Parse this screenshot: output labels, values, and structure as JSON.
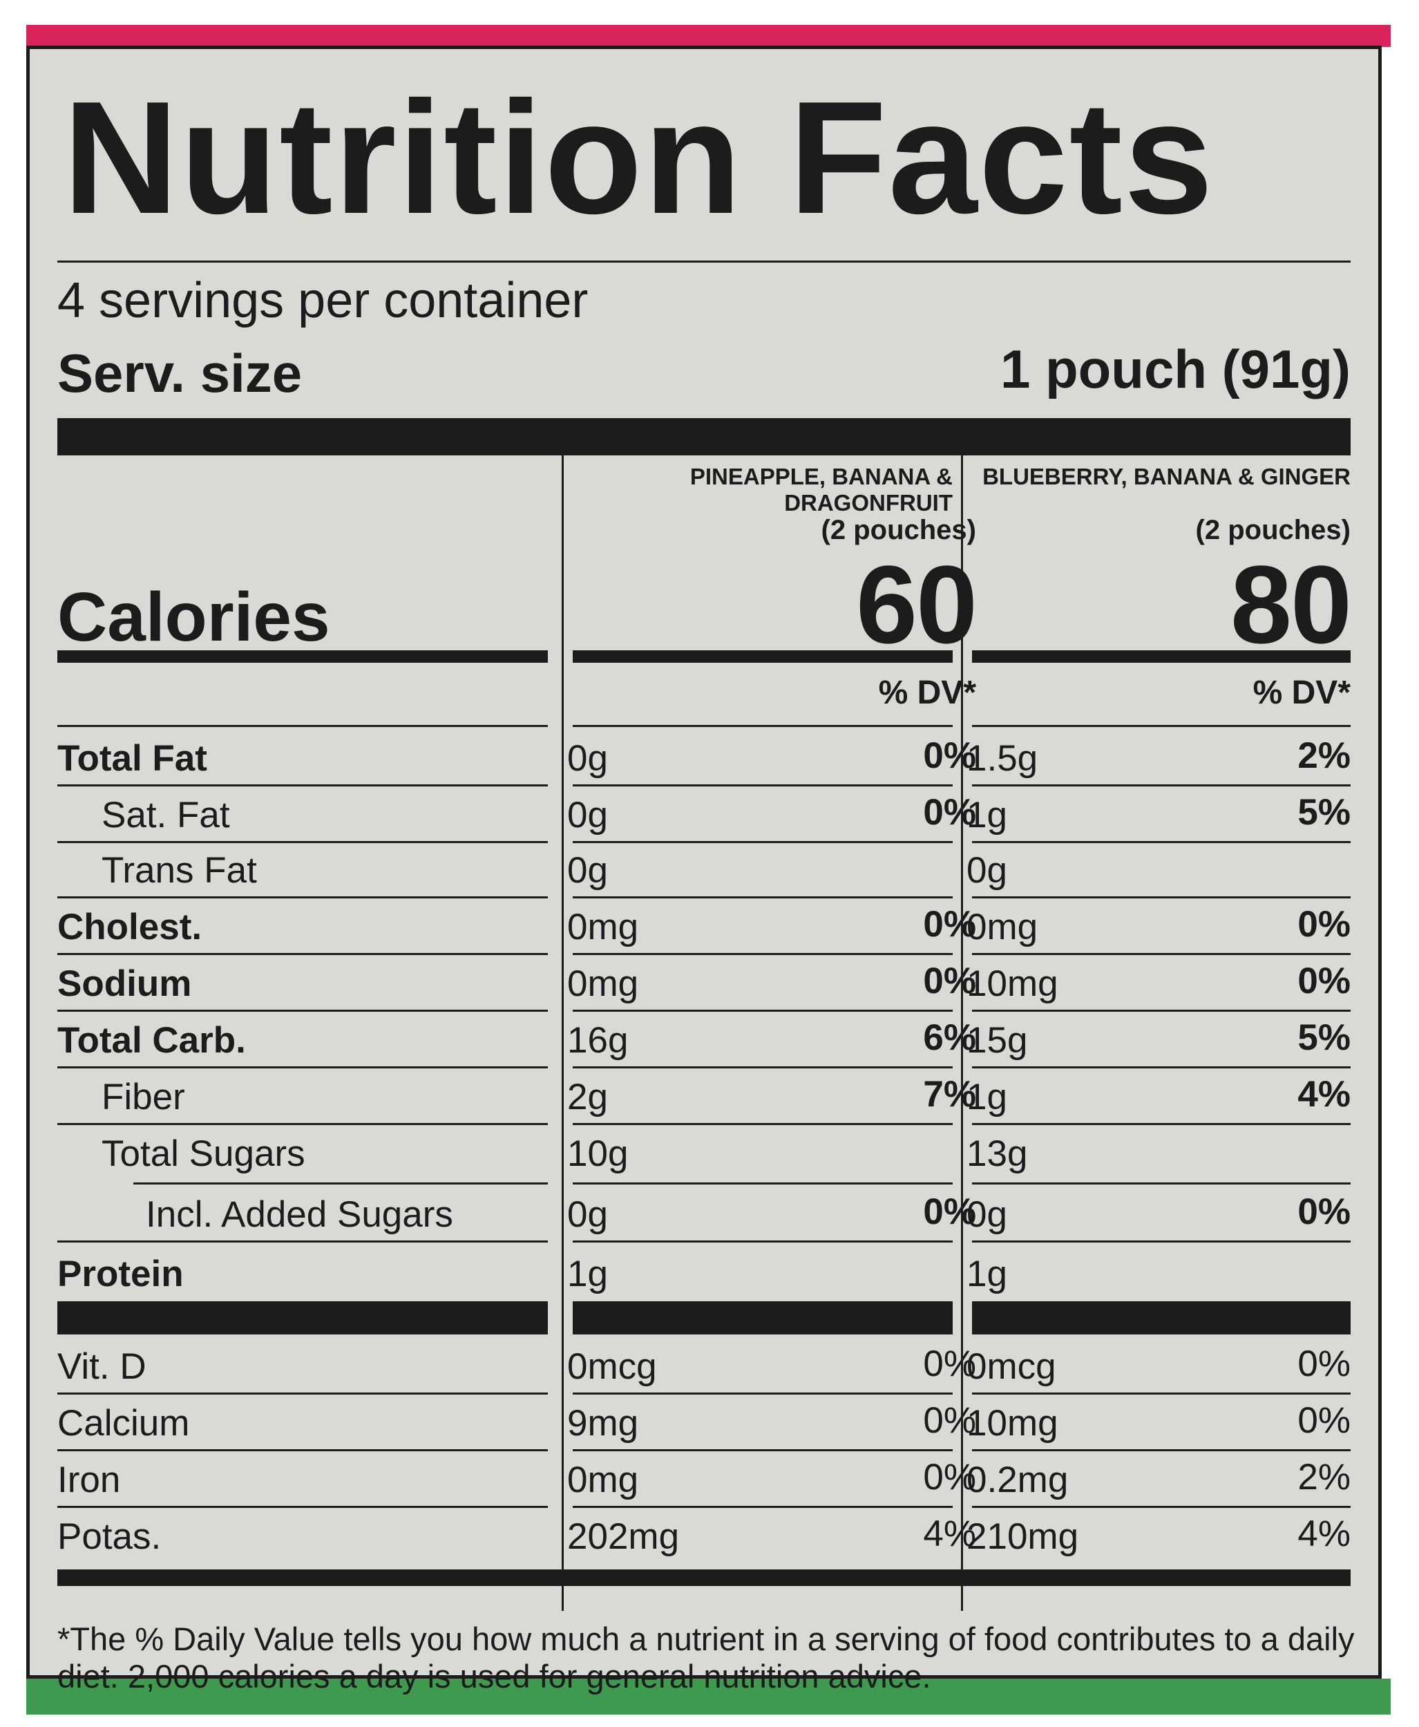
{
  "label": {
    "title": "Nutrition Facts",
    "servings_per_container": "4 servings per container",
    "serving_size_label": "Serv. size",
    "serving_size_value": "1 pouch (91g)",
    "calories_label": "Calories",
    "dv_header": "% DV*",
    "columns": [
      {
        "name": "PINEAPPLE, BANANA & DRAGONFRUIT",
        "pouches": "(2 pouches)",
        "calories": "60"
      },
      {
        "name": "BLUEBERRY, BANANA & GINGER",
        "pouches": "(2 pouches)",
        "calories": "80"
      }
    ],
    "nutrients": [
      {
        "name": "Total Fat",
        "c1_amt": "0g",
        "c1_dv": "0%",
        "c2_amt": "1.5g",
        "c2_dv": "2%"
      },
      {
        "name": "Sat. Fat",
        "c1_amt": "0g",
        "c1_dv": "0%",
        "c2_amt": "1g",
        "c2_dv": "5%"
      },
      {
        "name": "Trans Fat",
        "c1_amt": "0g",
        "c1_dv": "",
        "c2_amt": "0g",
        "c2_dv": ""
      },
      {
        "name": "Cholest.",
        "c1_amt": "0mg",
        "c1_dv": "0%",
        "c2_amt": "0mg",
        "c2_dv": "0%"
      },
      {
        "name": "Sodium",
        "c1_amt": "0mg",
        "c1_dv": "0%",
        "c2_amt": "10mg",
        "c2_dv": "0%"
      },
      {
        "name": "Total Carb.",
        "c1_amt": "16g",
        "c1_dv": "6%",
        "c2_amt": "15g",
        "c2_dv": "5%"
      },
      {
        "name": "Fiber",
        "c1_amt": "2g",
        "c1_dv": "7%",
        "c2_amt": "1g",
        "c2_dv": "4%"
      },
      {
        "name": "Total Sugars",
        "c1_amt": "10g",
        "c1_dv": "",
        "c2_amt": "13g",
        "c2_dv": ""
      },
      {
        "name": "Incl. Added Sugars",
        "c1_amt": "0g",
        "c1_dv": "0%",
        "c2_amt": "0g",
        "c2_dv": "0%"
      },
      {
        "name": "Protein",
        "c1_amt": "1g",
        "c1_dv": "",
        "c2_amt": "1g",
        "c2_dv": ""
      }
    ],
    "vitamins": [
      {
        "name": "Vit. D",
        "c1_amt": "0mcg",
        "c1_dv": "0%",
        "c2_amt": "0mcg",
        "c2_dv": "0%"
      },
      {
        "name": "Calcium",
        "c1_amt": "9mg",
        "c1_dv": "0%",
        "c2_amt": "10mg",
        "c2_dv": "0%"
      },
      {
        "name": "Iron",
        "c1_amt": "0mg",
        "c1_dv": "0%",
        "c2_amt": "0.2mg",
        "c2_dv": "2%"
      },
      {
        "name": "Potas.",
        "c1_amt": "202mg",
        "c1_dv": "4%",
        "c2_amt": "210mg",
        "c2_dv": "4%"
      }
    ],
    "footnote": "*The % Daily Value tells you how much a nutrient in a serving of food contributes to a daily diet. 2,000 calories a day is used for general nutrition advice."
  },
  "colors": {
    "top_band": "#d8245a",
    "bottom_band": "#3e9a4e",
    "panel": "#d9dad6",
    "ink": "#1c1c1c"
  }
}
